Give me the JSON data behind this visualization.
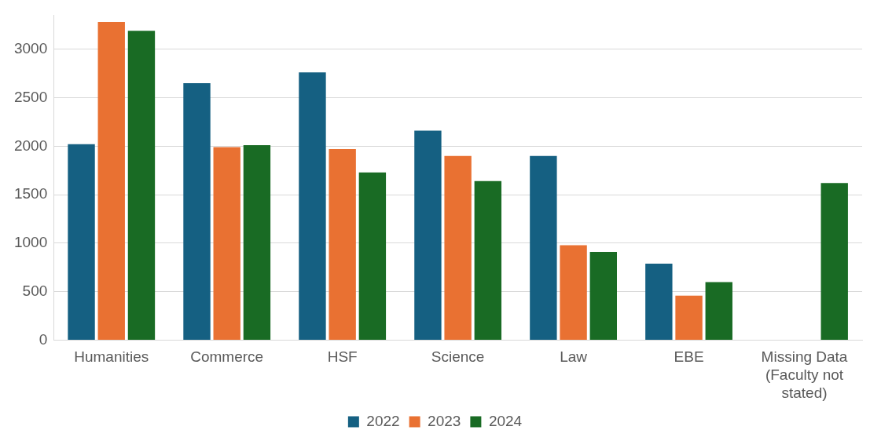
{
  "chart_data": {
    "type": "bar",
    "categories": [
      "Humanities",
      "Commerce",
      "HSF",
      "Science",
      "Law",
      "EBE",
      "Missing Data\n(Faculty not\nstated)"
    ],
    "series": [
      {
        "name": "2022",
        "color": "#156082",
        "values": [
          2020,
          2650,
          2760,
          2160,
          1900,
          790,
          null
        ]
      },
      {
        "name": "2023",
        "color": "#e97132",
        "values": [
          3280,
          1990,
          1970,
          1900,
          980,
          460,
          null
        ]
      },
      {
        "name": "2024",
        "color": "#196b24",
        "values": [
          3190,
          2010,
          1730,
          1640,
          910,
          600,
          1620
        ]
      }
    ],
    "ylim": [
      0,
      3350
    ],
    "yticks": [
      0,
      500,
      1000,
      1500,
      2000,
      2500,
      3000
    ],
    "grid": "y",
    "legend": "bottom"
  }
}
